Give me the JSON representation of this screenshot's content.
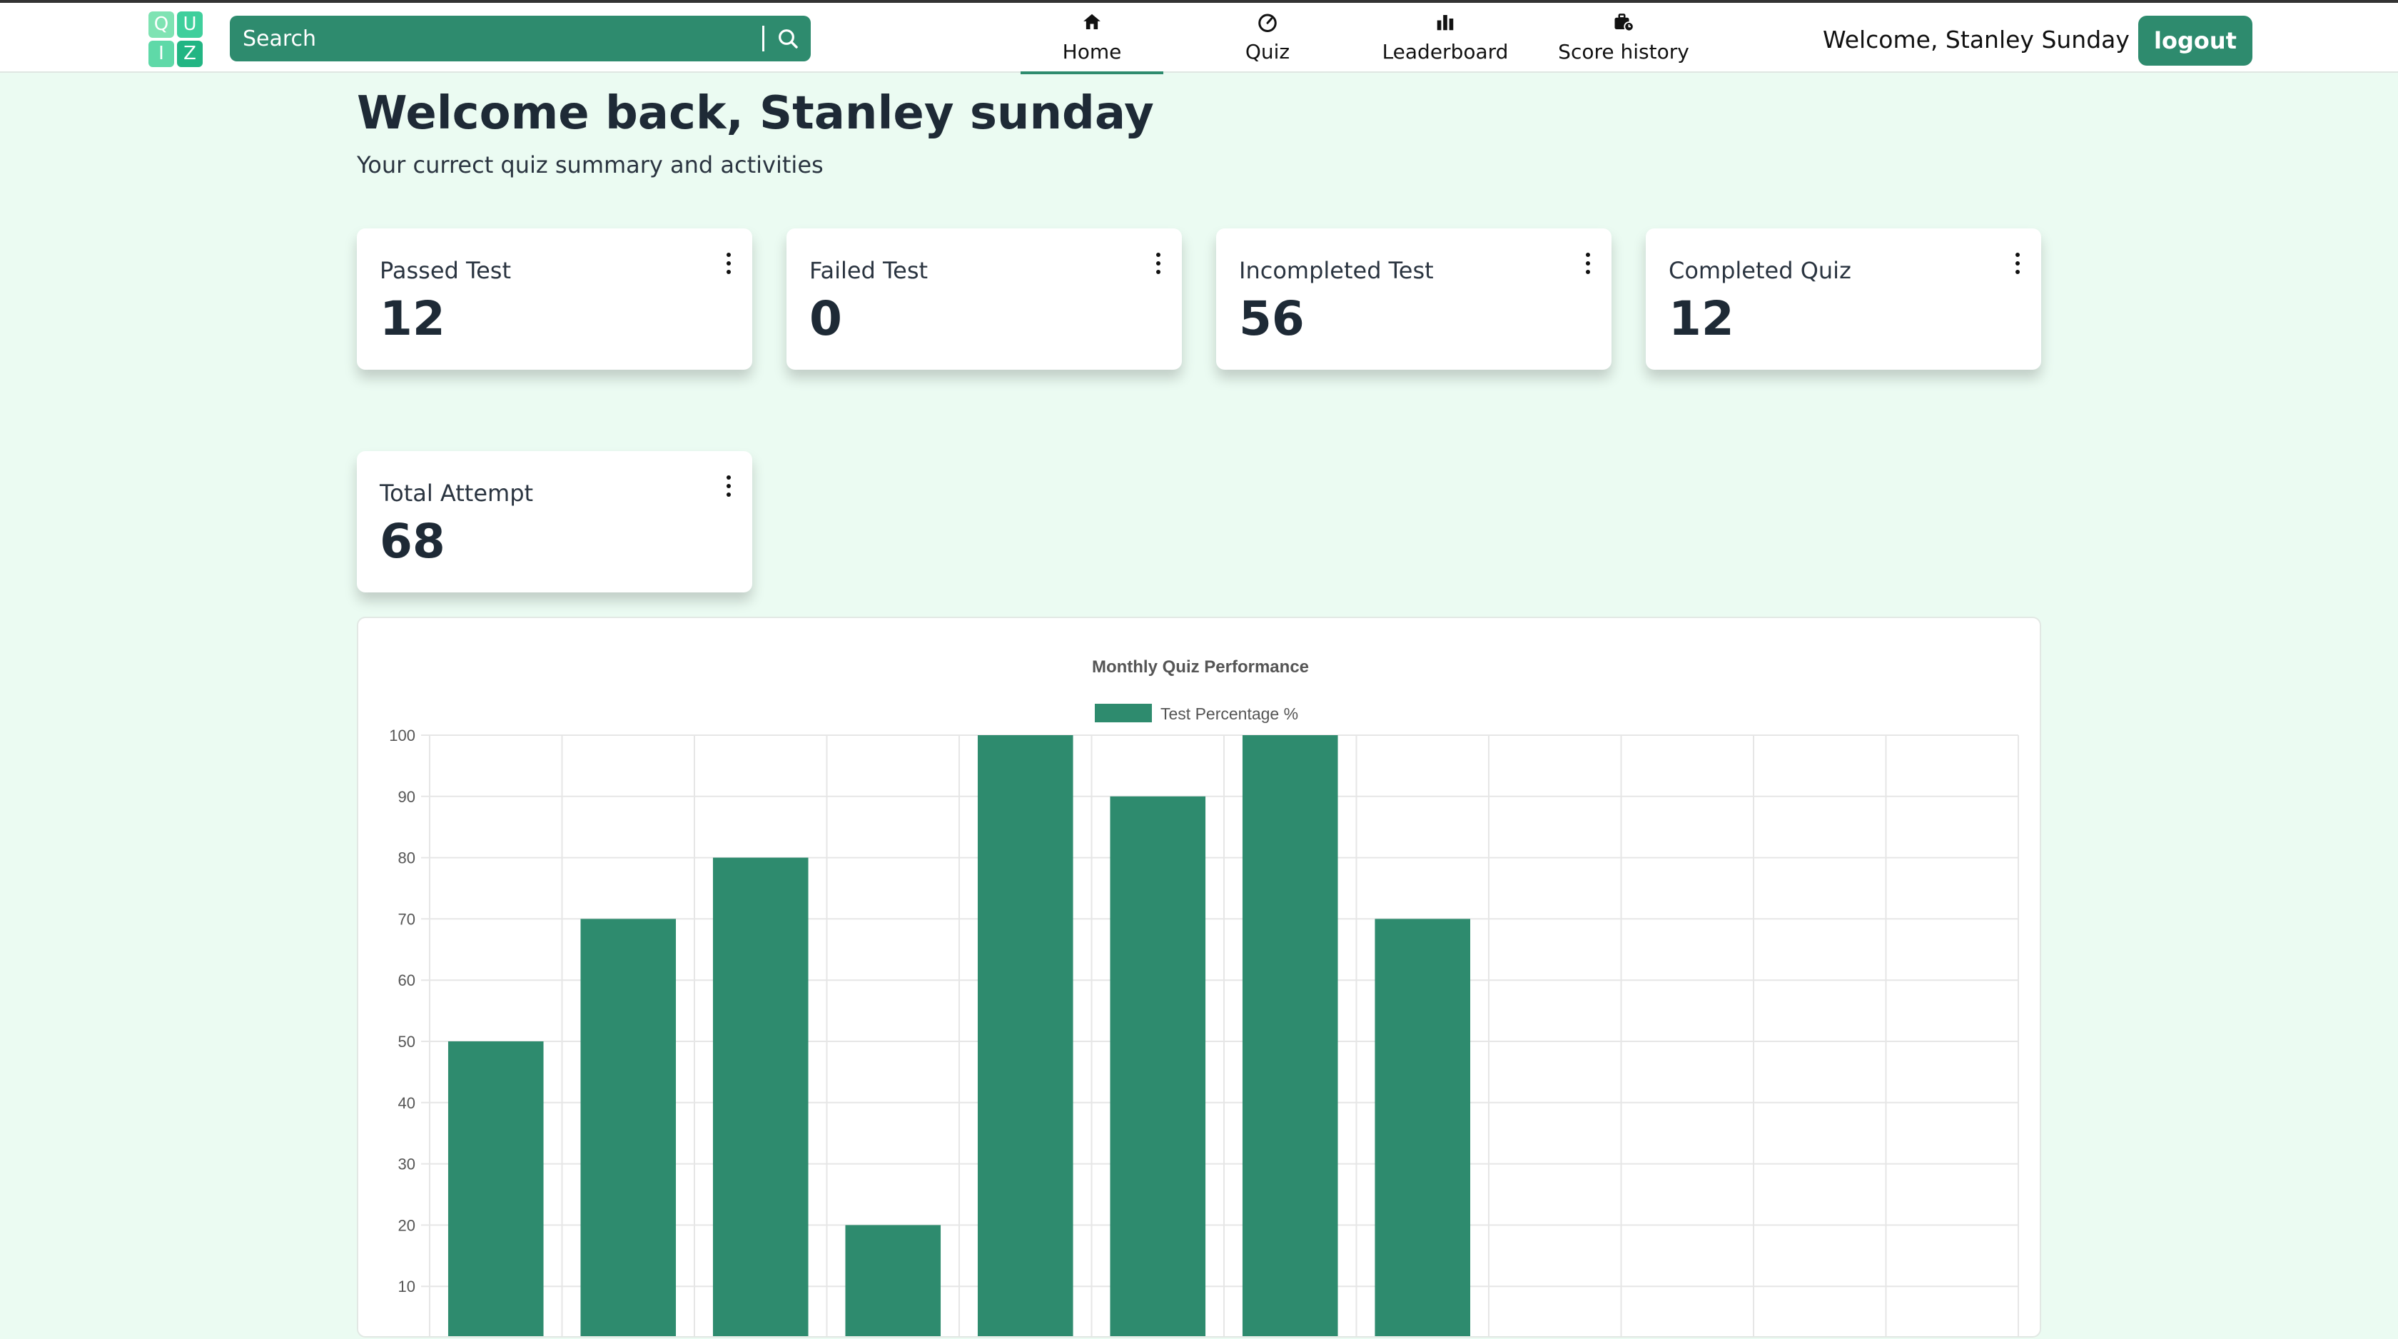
{
  "logo": {
    "letters": [
      "Q",
      "U",
      "I",
      "Z"
    ]
  },
  "search": {
    "placeholder": "Search"
  },
  "nav": [
    {
      "label": "Home",
      "icon": "home-icon",
      "active": true
    },
    {
      "label": "Quiz",
      "icon": "gauge-icon",
      "active": false
    },
    {
      "label": "Leaderboard",
      "icon": "bar-chart-icon",
      "active": false
    },
    {
      "label": "Score history",
      "icon": "briefcase-clock-icon",
      "active": false
    }
  ],
  "header": {
    "welcome": "Welcome, Stanley Sunday",
    "logout_label": "logout"
  },
  "main": {
    "title": "Welcome back, Stanley sunday",
    "subtitle": "Your currect quiz summary and activities"
  },
  "stats": [
    {
      "label": "Passed Test",
      "value": "12"
    },
    {
      "label": "Failed Test",
      "value": "0"
    },
    {
      "label": "Incompleted Test",
      "value": "56"
    },
    {
      "label": "Completed Quiz",
      "value": "12"
    },
    {
      "label": "Total Attempt",
      "value": "68"
    }
  ],
  "colors": {
    "accent": "#2e8b6e",
    "background": "#ebfbf2"
  },
  "chart_data": {
    "type": "bar",
    "title": "Monthly Quiz Performance",
    "series": [
      {
        "name": "Test Percentage %",
        "values": [
          50,
          70,
          80,
          20,
          100,
          90,
          100,
          70,
          null,
          null,
          null,
          null
        ]
      }
    ],
    "ylim": [
      0,
      100
    ],
    "yticks": [
      10,
      20,
      30,
      40,
      50,
      60,
      70,
      80,
      90,
      100
    ],
    "grid": true,
    "legend": "top"
  }
}
